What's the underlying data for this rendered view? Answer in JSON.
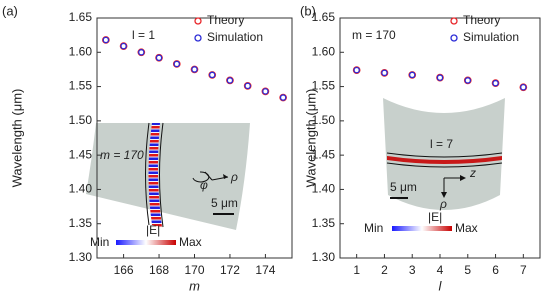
{
  "chart_data": [
    {
      "type": "scatter",
      "panel_label": "(a)",
      "xlabel": "m",
      "ylabel": "Wavelength (μm)",
      "x": [
        165,
        166,
        167,
        168,
        169,
        170,
        171,
        172,
        173,
        174,
        175
      ],
      "series": [
        {
          "name": "Theory",
          "color": "#e8262a",
          "values": [
            1.618,
            1.609,
            1.6,
            1.592,
            1.583,
            1.575,
            1.567,
            1.559,
            1.551,
            1.543,
            1.534
          ]
        },
        {
          "name": "Simulation",
          "color": "#2b2bd6",
          "values": [
            1.618,
            1.609,
            1.6,
            1.592,
            1.583,
            1.575,
            1.567,
            1.559,
            1.551,
            1.543,
            1.534
          ]
        }
      ],
      "xlim": [
        164.5,
        175.5
      ],
      "xticks": [
        166,
        168,
        170,
        172,
        174
      ],
      "ylim": [
        1.3,
        1.65
      ],
      "yticks": [
        {
          "value": 1.3,
          "label": "1.30"
        },
        1.35,
        {
          "value": 1.4,
          "label": "1.40"
        },
        1.45,
        {
          "value": 1.5,
          "label": "1.50"
        },
        1.55,
        {
          "value": 1.6,
          "label": "1.60"
        },
        1.65
      ],
      "annotations": [
        "l = 1",
        "m = 170",
        "φ",
        "ρ",
        "5 μm",
        "|E|",
        "Min",
        "Max"
      ]
    },
    {
      "type": "scatter",
      "panel_label": "(b)",
      "xlabel": "l",
      "ylabel": "Wavelength (μm)",
      "x": [
        1,
        2,
        3,
        4,
        5,
        6,
        7
      ],
      "series": [
        {
          "name": "Theory",
          "color": "#e8262a",
          "values": [
            1.574,
            1.57,
            1.567,
            1.563,
            1.559,
            1.555,
            1.549
          ]
        },
        {
          "name": "Simulation",
          "color": "#2b2bd6",
          "values": [
            1.574,
            1.57,
            1.567,
            1.563,
            1.559,
            1.555,
            1.549
          ]
        }
      ],
      "xlim": [
        0.4,
        7.6
      ],
      "xticks": [
        1,
        2,
        3,
        4,
        5,
        6,
        7
      ],
      "ylim": [
        1.3,
        1.65
      ],
      "yticks": [
        {
          "value": 1.3,
          "label": "1.30"
        },
        1.35,
        {
          "value": 1.4,
          "label": "1.40"
        },
        1.45,
        {
          "value": 1.5,
          "label": "1.50"
        },
        1.55,
        {
          "value": 1.6,
          "label": "1.60"
        },
        1.65
      ],
      "annotations": [
        "m = 170",
        "l = 7",
        "5 μm",
        "z",
        "ρ",
        "|E|",
        "Min",
        "Max"
      ]
    }
  ]
}
